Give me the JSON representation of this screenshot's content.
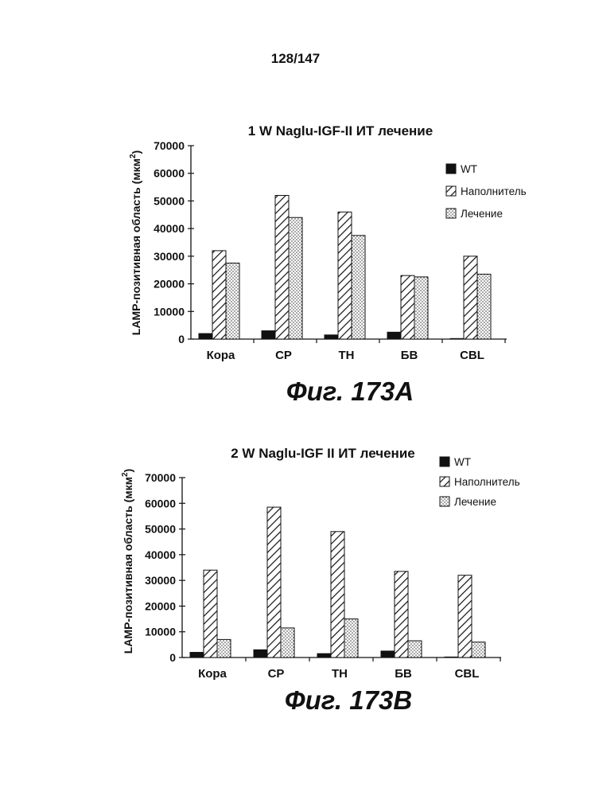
{
  "page": {
    "number": "128/147"
  },
  "chart_data": [
    {
      "type": "bar",
      "title": "1 W Naglu-IGF-II ИТ лечение",
      "ylabel": "LAMP-позитивная область (мкм",
      "ylabel_sup": "2",
      "ylabel_close": ")",
      "xlabel": "",
      "ylim": [
        0,
        70000
      ],
      "yticks": [
        "0",
        "10000",
        "20000",
        "30000",
        "40000",
        "50000",
        "60000",
        "70000"
      ],
      "categories": [
        "Кора",
        "СР",
        "ТН",
        "БВ",
        "CBL"
      ],
      "series": [
        {
          "name": "WT",
          "pattern": "solid",
          "values": [
            2000,
            3000,
            1500,
            2500,
            200
          ]
        },
        {
          "name": "Наполнитель",
          "pattern": "hatch",
          "values": [
            32000,
            52000,
            46000,
            23000,
            30000
          ]
        },
        {
          "name": "Лечение",
          "pattern": "dots",
          "values": [
            27500,
            44000,
            37500,
            22500,
            23500
          ]
        }
      ],
      "figure_label": "Фиг. 173A",
      "legend_position": "right"
    },
    {
      "type": "bar",
      "title": "2 W Naglu-IGF II ИТ лечение",
      "ylabel": "LAMP-позитивная область (мкм",
      "ylabel_sup": "2",
      "ylabel_close": ")",
      "xlabel": "",
      "ylim": [
        0,
        70000
      ],
      "yticks": [
        "0",
        "10000",
        "20000",
        "30000",
        "40000",
        "50000",
        "60000",
        "70000"
      ],
      "categories": [
        "Кора",
        "СР",
        "ТН",
        "БВ",
        "CBL"
      ],
      "series": [
        {
          "name": "WT",
          "pattern": "solid",
          "values": [
            2000,
            3000,
            1500,
            2500,
            200
          ]
        },
        {
          "name": "Наполнитель",
          "pattern": "hatch",
          "values": [
            34000,
            58500,
            49000,
            33500,
            32000
          ]
        },
        {
          "name": "Лечение",
          "pattern": "dots",
          "values": [
            7000,
            11500,
            15000,
            6500,
            6000
          ]
        }
      ],
      "figure_label": "Фиг. 173B",
      "legend_position": "top-right"
    }
  ]
}
